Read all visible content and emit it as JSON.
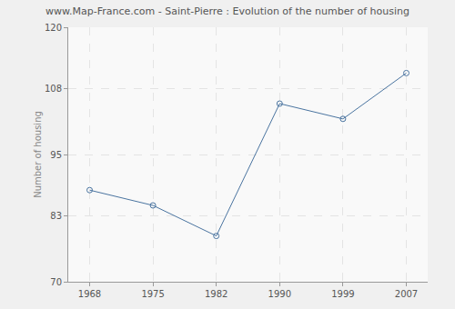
{
  "chart_data": {
    "type": "line",
    "title": "www.Map-France.com - Saint-Pierre : Evolution of the number of housing",
    "y_label": "Number of housing",
    "categories": [
      "1968",
      "1975",
      "1982",
      "1990",
      "1999",
      "2007"
    ],
    "values": [
      88,
      85,
      79,
      105,
      102,
      111
    ],
    "color": "#4a74a0",
    "marker": "circle-open",
    "ylim": [
      70,
      120
    ],
    "yticks": [
      70,
      83,
      95,
      108,
      120
    ],
    "grid": true
  }
}
